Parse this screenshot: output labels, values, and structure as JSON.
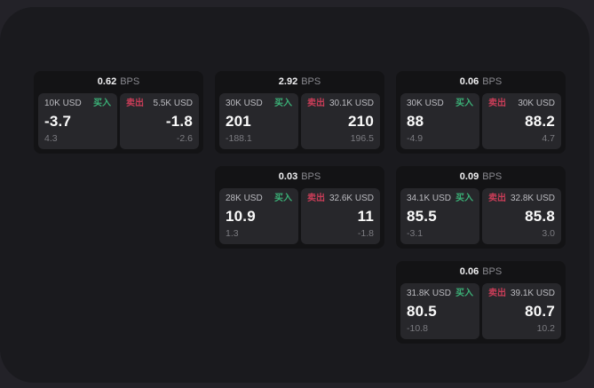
{
  "labels": {
    "bps_unit": "BPS",
    "buy": "买入",
    "sell": "卖出"
  },
  "colors": {
    "buy_green": "#3bb077",
    "sell_red": "#c93d58",
    "panel_bg": "#1a1a1e",
    "card_bg": "#131315",
    "tile_bg": "#27272b"
  },
  "cards": [
    {
      "spread_bps": "0.62",
      "buy": {
        "amount": "10K USD",
        "price": "-3.7",
        "sub": "4.3"
      },
      "sell": {
        "amount": "5.5K USD",
        "price": "-1.8",
        "sub": "-2.6"
      }
    },
    {
      "spread_bps": "2.92",
      "buy": {
        "amount": "30K USD",
        "price": "201",
        "sub": "-188.1"
      },
      "sell": {
        "amount": "30.1K USD",
        "price": "210",
        "sub": "196.5"
      }
    },
    {
      "spread_bps": "0.06",
      "buy": {
        "amount": "30K USD",
        "price": "88",
        "sub": "-4.9"
      },
      "sell": {
        "amount": "30K USD",
        "price": "88.2",
        "sub": "4.7"
      }
    },
    {
      "spread_bps": "0.03",
      "buy": {
        "amount": "28K USD",
        "price": "10.9",
        "sub": "1.3"
      },
      "sell": {
        "amount": "32.6K USD",
        "price": "11",
        "sub": "-1.8"
      }
    },
    {
      "spread_bps": "0.09",
      "buy": {
        "amount": "34.1K USD",
        "price": "85.5",
        "sub": "-3.1"
      },
      "sell": {
        "amount": "32.8K USD",
        "price": "85.8",
        "sub": "3.0"
      }
    },
    {
      "spread_bps": "0.06",
      "buy": {
        "amount": "31.8K USD",
        "price": "80.5",
        "sub": "-10.8"
      },
      "sell": {
        "amount": "39.1K USD",
        "price": "80.7",
        "sub": "10.2"
      }
    }
  ]
}
